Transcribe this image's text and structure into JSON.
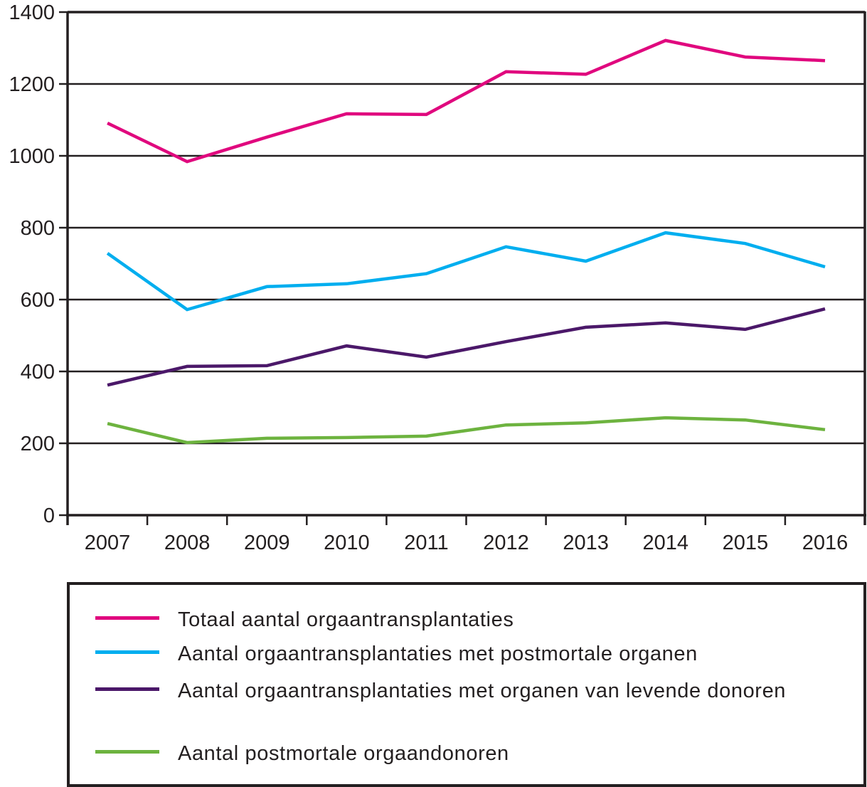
{
  "chart_data": {
    "type": "line",
    "title": "",
    "xlabel": "",
    "ylabel": "",
    "x": [
      "2007",
      "2008",
      "2009",
      "2010",
      "2011",
      "2012",
      "2013",
      "2014",
      "2015",
      "2016"
    ],
    "ylim": [
      0,
      1400
    ],
    "yticks": [
      0,
      200,
      400,
      600,
      800,
      1000,
      1200,
      1400
    ],
    "ytick_labels": [
      "0",
      "200",
      "400",
      "600",
      "800",
      "1000",
      "1200",
      "1400"
    ],
    "grid": "horizontal",
    "legend_position": "bottom",
    "series": [
      {
        "name": "Totaal aantal orgaantransplantaties",
        "color": "#e0087e",
        "values": [
          1091,
          984,
          1052,
          1117,
          1115,
          1234,
          1227,
          1321,
          1275,
          1265
        ]
      },
      {
        "name": "Aantal orgaantransplantaties met postmortale organen",
        "color": "#00aeef",
        "values": [
          729,
          572,
          636,
          644,
          672,
          747,
          707,
          786,
          756,
          691
        ]
      },
      {
        "name": "Aantal orgaantransplantaties met organen van levende donoren",
        "color": "#4b1869",
        "values": [
          362,
          414,
          416,
          471,
          440,
          483,
          523,
          535,
          517,
          574
        ]
      },
      {
        "name": "Aantal postmortale orgaandonoren",
        "color": "#6db33f",
        "values": [
          255,
          202,
          214,
          216,
          220,
          251,
          257,
          271,
          265,
          238
        ]
      }
    ]
  }
}
